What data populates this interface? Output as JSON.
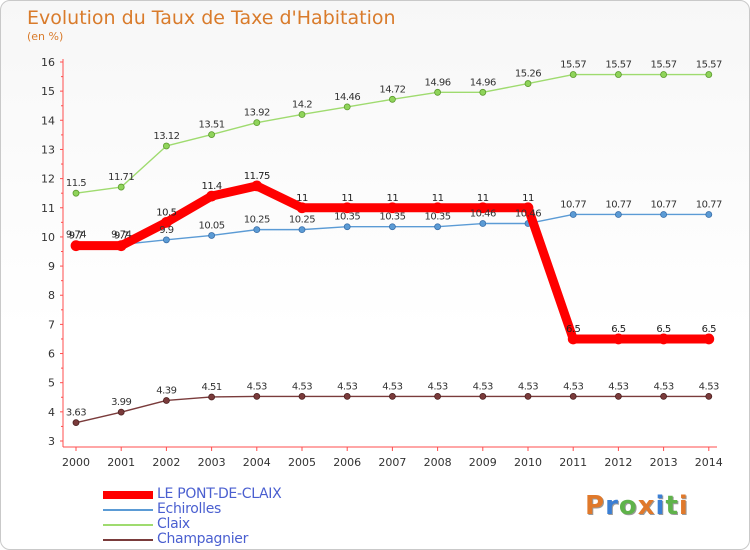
{
  "header": {
    "title": "Evolution du Taux de Taxe d'Habitation",
    "unit": "(en %)"
  },
  "chart_data": {
    "type": "line",
    "title": "Evolution du Taux de Taxe d'Habitation",
    "ylabel": "(en %)",
    "xlabel": "",
    "x": [
      "2000",
      "2001",
      "2002",
      "2003",
      "2004",
      "2005",
      "2006",
      "2007",
      "2008",
      "2009",
      "2010",
      "2011",
      "2012",
      "2013",
      "2014"
    ],
    "ylim": [
      3,
      16
    ],
    "yticks": [
      "3",
      "4",
      "5",
      "6",
      "7",
      "8",
      "9",
      "10",
      "11",
      "12",
      "13",
      "14",
      "15",
      "16"
    ],
    "grid": false,
    "legend_position": "bottom-left",
    "series": [
      {
        "name": "LE PONT-DE-CLAIX",
        "color": "#ff0000",
        "values": [
          9.7,
          9.7,
          10.5,
          11.4,
          11.75,
          11,
          11,
          11,
          11,
          11,
          11,
          6.5,
          6.5,
          6.5,
          6.5
        ],
        "labels": [
          "9.7",
          "9.7",
          "10.5",
          "11.4",
          "11.75",
          "11",
          "11",
          "11",
          "11",
          "11",
          "11",
          "6.5",
          "6.5",
          "6.5",
          "6.5"
        ]
      },
      {
        "name": "Echirolles",
        "color": "#5b9bd5",
        "values": [
          9.74,
          9.74,
          9.9,
          10.05,
          10.25,
          10.25,
          10.35,
          10.35,
          10.35,
          10.46,
          10.46,
          10.77,
          10.77,
          10.77,
          10.77
        ],
        "labels": [
          "9.74",
          "9.74",
          "9.9",
          "10.05",
          "10.25",
          "10.25",
          "10.35",
          "10.35",
          "10.35",
          "10.46",
          "10.46",
          "10.77",
          "10.77",
          "10.77",
          "10.77"
        ]
      },
      {
        "name": "Claix",
        "color": "#9fdb6f",
        "values": [
          11.5,
          11.71,
          13.12,
          13.51,
          13.92,
          14.2,
          14.46,
          14.72,
          14.96,
          14.96,
          15.26,
          15.57,
          15.57,
          15.57,
          15.57
        ],
        "labels": [
          "11.5",
          "11.71",
          "13.12",
          "13.51",
          "13.92",
          "14.2",
          "14.46",
          "14.72",
          "14.96",
          "14.96",
          "15.26",
          "15.57",
          "15.57",
          "15.57",
          "15.57"
        ]
      },
      {
        "name": "Champagnier",
        "color": "#7a3b3b",
        "values": [
          3.63,
          3.99,
          4.39,
          4.51,
          4.53,
          4.53,
          4.53,
          4.53,
          4.53,
          4.53,
          4.53,
          4.53,
          4.53,
          4.53,
          4.53
        ],
        "labels": [
          "3.63",
          "3.99",
          "4.39",
          "4.51",
          "4.53",
          "4.53",
          "4.53",
          "4.53",
          "4.53",
          "4.53",
          "4.53",
          "4.53",
          "4.53",
          "4.53",
          "4.53"
        ]
      }
    ]
  },
  "legend": {
    "items": [
      {
        "label": "LE PONT-DE-CLAIX",
        "color": "#ff0000"
      },
      {
        "label": "Echirolles",
        "color": "#5b9bd5"
      },
      {
        "label": "Claix",
        "color": "#9fdb6f"
      },
      {
        "label": "Champagnier",
        "color": "#7a3b3b"
      }
    ]
  },
  "logo": {
    "letters": [
      "P",
      "r",
      "o",
      "x",
      "i",
      "t",
      "i"
    ],
    "colors": [
      "#e0792b",
      "#3b7fd4",
      "#5fb34a",
      "#e0792b",
      "#3b7fd4",
      "#5fb34a",
      "#e0792b"
    ]
  }
}
